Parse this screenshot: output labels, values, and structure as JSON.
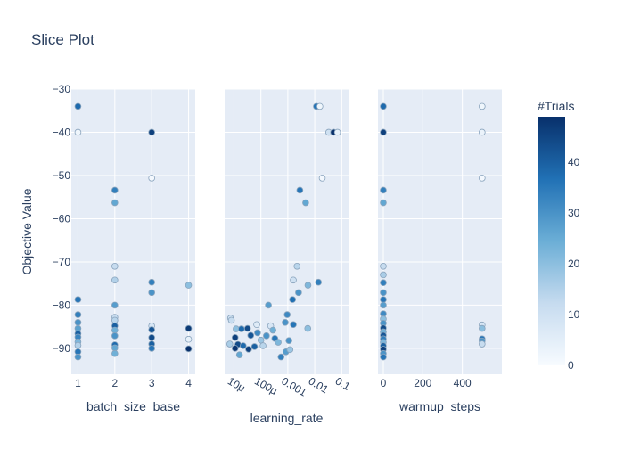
{
  "chart_data": {
    "type": "scatter",
    "title": "Slice Plot",
    "ylabel": "Objective Value",
    "ylim": [
      -96,
      -30
    ],
    "y_ticks": [
      -30,
      -40,
      -50,
      -60,
      -70,
      -80,
      -90
    ],
    "colorbar": {
      "title": "#Trials",
      "min": 0,
      "max": 49,
      "ticks": [
        0,
        10,
        20,
        30,
        40
      ],
      "colors": [
        "#f7fbff",
        "#c6dbef",
        "#6baed6",
        "#2171b5",
        "#08306b"
      ]
    },
    "plot_bg": "#e5ecf6",
    "panels": [
      {
        "xlabel": "batch_size_base",
        "x_scale": "linear",
        "xlim": [
          0.82,
          4.18
        ],
        "x_ticks": [
          1,
          2,
          3,
          4
        ],
        "x_tick_labels": [
          "1",
          "2",
          "3",
          "4"
        ],
        "tick_rotation": 0,
        "points": [
          {
            "x": 1,
            "y": -34,
            "c": 38
          },
          {
            "x": 1,
            "y": -40,
            "c": 2
          },
          {
            "x": 1,
            "y": -78.7,
            "c": 36
          },
          {
            "x": 1,
            "y": -82.2,
            "c": 34
          },
          {
            "x": 1,
            "y": -84,
            "c": 30
          },
          {
            "x": 1,
            "y": -85.4,
            "c": 27
          },
          {
            "x": 1,
            "y": -86.6,
            "c": 40
          },
          {
            "x": 1,
            "y": -87.4,
            "c": 33
          },
          {
            "x": 1,
            "y": -88.5,
            "c": 22
          },
          {
            "x": 1,
            "y": -89.3,
            "c": 15
          },
          {
            "x": 1,
            "y": -90.8,
            "c": 36
          },
          {
            "x": 1,
            "y": -92,
            "c": 30
          },
          {
            "x": 2,
            "y": -53.4,
            "c": 34
          },
          {
            "x": 2,
            "y": -56.3,
            "c": 26
          },
          {
            "x": 2,
            "y": -71,
            "c": 12
          },
          {
            "x": 2,
            "y": -74.2,
            "c": 15
          },
          {
            "x": 2,
            "y": -80,
            "c": 28
          },
          {
            "x": 2,
            "y": -82.8,
            "c": 12
          },
          {
            "x": 2,
            "y": -83.5,
            "c": 14
          },
          {
            "x": 2,
            "y": -84.8,
            "c": 40
          },
          {
            "x": 2,
            "y": -85.8,
            "c": 24
          },
          {
            "x": 2,
            "y": -87.1,
            "c": 30
          },
          {
            "x": 2,
            "y": -89.2,
            "c": 38
          },
          {
            "x": 2,
            "y": -89.9,
            "c": 26
          },
          {
            "x": 2,
            "y": -91.2,
            "c": 24
          },
          {
            "x": 3,
            "y": -40,
            "c": 46
          },
          {
            "x": 3,
            "y": -50.6,
            "c": 1
          },
          {
            "x": 3,
            "y": -74.7,
            "c": 34
          },
          {
            "x": 3,
            "y": -77.1,
            "c": 30
          },
          {
            "x": 3,
            "y": -84.8,
            "c": 8
          },
          {
            "x": 3,
            "y": -85.7,
            "c": 42
          },
          {
            "x": 3,
            "y": -87.5,
            "c": 44
          },
          {
            "x": 3,
            "y": -89,
            "c": 40
          },
          {
            "x": 3,
            "y": -90,
            "c": 36
          },
          {
            "x": 4,
            "y": -75.4,
            "c": 20
          },
          {
            "x": 4,
            "y": -85.4,
            "c": 47
          },
          {
            "x": 4,
            "y": -87.9,
            "c": 4
          },
          {
            "x": 4,
            "y": -90.1,
            "c": 49
          }
        ]
      },
      {
        "xlabel": "learning_rate",
        "x_scale": "log",
        "xlim": [
          4.5e-06,
          0.18
        ],
        "x_ticks": [
          1e-05,
          0.0001,
          0.001,
          0.01,
          0.1
        ],
        "x_tick_labels": [
          "10μ",
          "100μ",
          "0.001",
          "0.01",
          "0.1"
        ],
        "tick_rotation": 30,
        "points": [
          {
            "x": 0.0115,
            "y": -34,
            "c": 36
          },
          {
            "x": 0.0155,
            "y": -34,
            "c": 2
          },
          {
            "x": 0.033,
            "y": -40,
            "c": 10
          },
          {
            "x": 0.05,
            "y": -40,
            "c": 49
          },
          {
            "x": 0.07,
            "y": -40,
            "c": 4
          },
          {
            "x": 0.019,
            "y": -50.6,
            "c": 1
          },
          {
            "x": 0.0028,
            "y": -53.4,
            "c": 36
          },
          {
            "x": 0.0046,
            "y": -56.3,
            "c": 26
          },
          {
            "x": 0.0022,
            "y": -71,
            "c": 14
          },
          {
            "x": 0.0016,
            "y": -74.2,
            "c": 10
          },
          {
            "x": 0.0056,
            "y": -75.4,
            "c": 22
          },
          {
            "x": 0.0137,
            "y": -74.7,
            "c": 34
          },
          {
            "x": 0.0025,
            "y": -77.1,
            "c": 30
          },
          {
            "x": 0.0015,
            "y": -78.7,
            "c": 37
          },
          {
            "x": 0.00019,
            "y": -80,
            "c": 28
          },
          {
            "x": 0.00095,
            "y": -82.2,
            "c": 32
          },
          {
            "x": 7.5e-06,
            "y": -83,
            "c": 10
          },
          {
            "x": 8e-06,
            "y": -83.5,
            "c": 12
          },
          {
            "x": 0.0008,
            "y": -84,
            "c": 30
          },
          {
            "x": 0.0016,
            "y": -84.5,
            "c": 36
          },
          {
            "x": 7e-05,
            "y": -84.5,
            "c": 6
          },
          {
            "x": 0.00023,
            "y": -84.8,
            "c": 8
          },
          {
            "x": 1.2e-05,
            "y": -85.5,
            "c": 20
          },
          {
            "x": 1.9e-05,
            "y": -85.5,
            "c": 38
          },
          {
            "x": 3.2e-05,
            "y": -85.4,
            "c": 44
          },
          {
            "x": 0.00028,
            "y": -85.8,
            "c": 24
          },
          {
            "x": 0.0055,
            "y": -85.4,
            "c": 20
          },
          {
            "x": 7.5e-05,
            "y": -86.4,
            "c": 32
          },
          {
            "x": 1.1e-05,
            "y": -87.5,
            "c": 46
          },
          {
            "x": 0.00016,
            "y": -87.1,
            "c": 30
          },
          {
            "x": 4.2e-05,
            "y": -87,
            "c": 42
          },
          {
            "x": 0.0001,
            "y": -88.1,
            "c": 18
          },
          {
            "x": 0.00033,
            "y": -87.7,
            "c": 36
          },
          {
            "x": 0.00044,
            "y": -88.6,
            "c": 22
          },
          {
            "x": 0.0011,
            "y": -88.2,
            "c": 30
          },
          {
            "x": 7e-06,
            "y": -89,
            "c": 16
          },
          {
            "x": 1.4e-05,
            "y": -89.1,
            "c": 44
          },
          {
            "x": 0.00012,
            "y": -89.4,
            "c": 14
          },
          {
            "x": 2.2e-05,
            "y": -89.4,
            "c": 38
          },
          {
            "x": 1.1e-05,
            "y": -90,
            "c": 48
          },
          {
            "x": 3.5e-05,
            "y": -90.2,
            "c": 46
          },
          {
            "x": 5.8e-05,
            "y": -89.6,
            "c": 40
          },
          {
            "x": 0.00085,
            "y": -90.8,
            "c": 28
          },
          {
            "x": 0.0012,
            "y": -90.3,
            "c": 18
          },
          {
            "x": 1.6e-05,
            "y": -91.5,
            "c": 26
          },
          {
            "x": 0.00056,
            "y": -92,
            "c": 34
          }
        ]
      },
      {
        "xlabel": "warmup_steps",
        "x_scale": "linear",
        "xlim": [
          -27,
          600
        ],
        "x_ticks": [
          0,
          200,
          400
        ],
        "x_tick_labels": [
          "0",
          "200",
          "400"
        ],
        "tick_rotation": 0,
        "points": [
          {
            "x": 0,
            "y": -34,
            "c": 38
          },
          {
            "x": 0,
            "y": -40,
            "c": 46
          },
          {
            "x": 0,
            "y": -53.4,
            "c": 34
          },
          {
            "x": 0,
            "y": -56.3,
            "c": 26
          },
          {
            "x": 0,
            "y": -71,
            "c": 12
          },
          {
            "x": 0,
            "y": -73,
            "c": 16
          },
          {
            "x": 0,
            "y": -74.8,
            "c": 34
          },
          {
            "x": 0,
            "y": -77.1,
            "c": 30
          },
          {
            "x": 0,
            "y": -78.7,
            "c": 36
          },
          {
            "x": 0,
            "y": -80,
            "c": 28
          },
          {
            "x": 0,
            "y": -82,
            "c": 32
          },
          {
            "x": 0,
            "y": -83.2,
            "c": 20
          },
          {
            "x": 0,
            "y": -84.2,
            "c": 30
          },
          {
            "x": 0,
            "y": -85.3,
            "c": 44
          },
          {
            "x": 0,
            "y": -86.2,
            "c": 24
          },
          {
            "x": 0,
            "y": -87,
            "c": 42
          },
          {
            "x": 0,
            "y": -87.8,
            "c": 34
          },
          {
            "x": 0,
            "y": -88.6,
            "c": 22
          },
          {
            "x": 0,
            "y": -89.4,
            "c": 40
          },
          {
            "x": 0,
            "y": -90.2,
            "c": 46
          },
          {
            "x": 0,
            "y": -91.2,
            "c": 30
          },
          {
            "x": 0,
            "y": -92,
            "c": 36
          },
          {
            "x": 500,
            "y": -34,
            "c": 2
          },
          {
            "x": 500,
            "y": -40,
            "c": 3
          },
          {
            "x": 500,
            "y": -50.6,
            "c": 1
          },
          {
            "x": 500,
            "y": -84.6,
            "c": 8
          },
          {
            "x": 500,
            "y": -85.4,
            "c": 20
          },
          {
            "x": 500,
            "y": -87.8,
            "c": 36
          },
          {
            "x": 500,
            "y": -88.3,
            "c": 30
          },
          {
            "x": 500,
            "y": -89,
            "c": 12
          }
        ]
      }
    ]
  }
}
